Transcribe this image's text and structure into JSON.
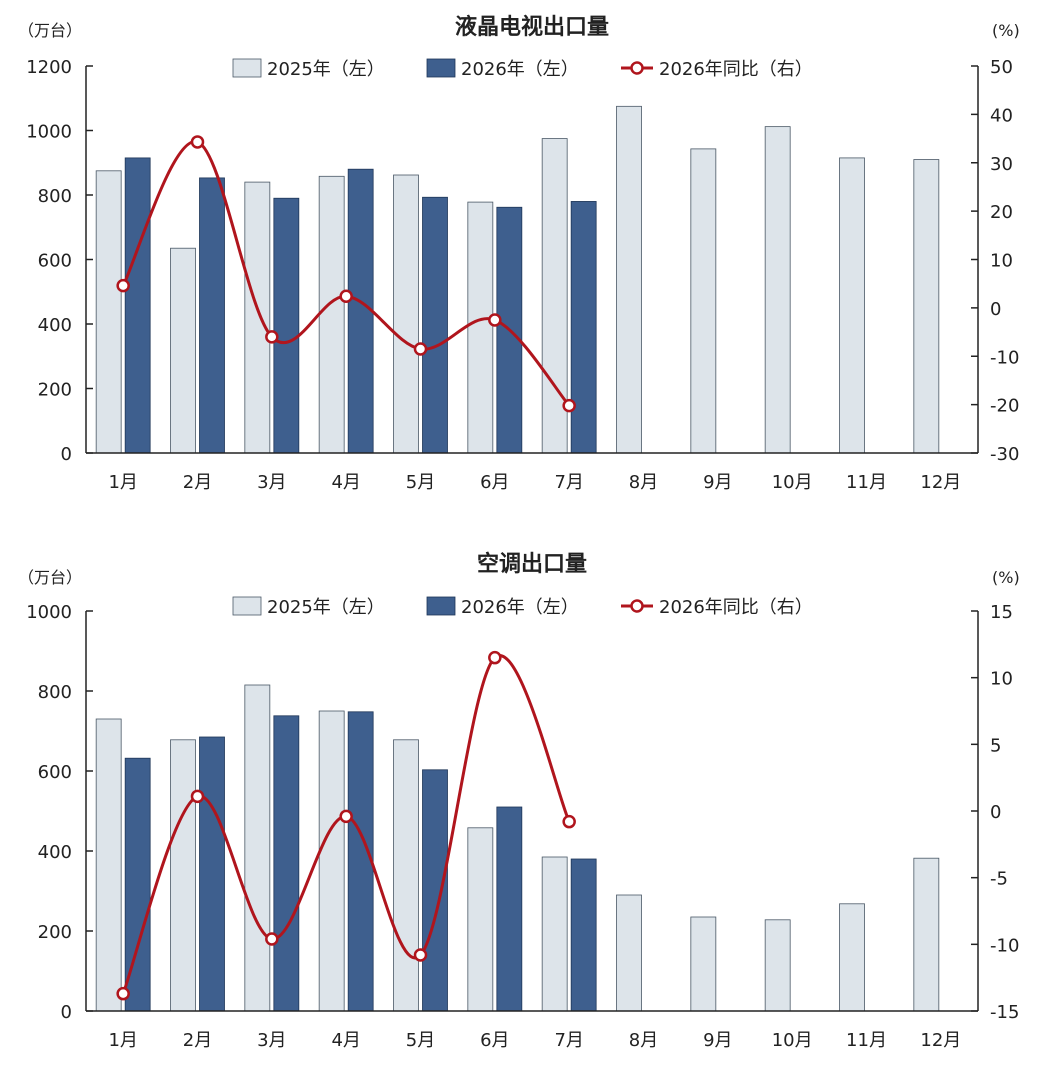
{
  "legend": {
    "series_2025": "2025年（左）",
    "series_2026": "2026年（左）",
    "series_yoy": "2026年同比（右）"
  },
  "colors": {
    "bar_2025": "#dde4ea",
    "bar_2026": "#3e5f8e",
    "yoy_line": "#b0151d"
  },
  "chart_data": [
    {
      "type": "bar",
      "title": "液晶电视出口量",
      "ylabel_left": "（万台）",
      "ylabel_right": "(%)",
      "categories": [
        "1月",
        "2月",
        "3月",
        "4月",
        "5月",
        "6月",
        "7月",
        "8月",
        "9月",
        "10月",
        "11月",
        "12月"
      ],
      "ylim_left": [
        0,
        1200
      ],
      "yticks_left": [
        0,
        200,
        400,
        600,
        800,
        1000,
        1200
      ],
      "ylim_right": [
        -30,
        50
      ],
      "yticks_right": [
        -30,
        -20,
        -10,
        0,
        10,
        20,
        30,
        40,
        50
      ],
      "legend_position": "top",
      "series": [
        {
          "name": "2025年（左）",
          "axis": "left",
          "kind": "bar",
          "values": [
            875,
            635,
            840,
            858,
            862,
            778,
            975,
            1075,
            943,
            1012,
            915,
            910
          ]
        },
        {
          "name": "2026年（左）",
          "axis": "left",
          "kind": "bar",
          "values": [
            915,
            853,
            790,
            880,
            793,
            762,
            780,
            null,
            null,
            null,
            null,
            null
          ]
        },
        {
          "name": "2026年同比（右）",
          "axis": "right",
          "kind": "line",
          "values": [
            4.6,
            34.3,
            -6.0,
            2.4,
            -8.5,
            -2.5,
            -20.2,
            null,
            null,
            null,
            null,
            null
          ]
        }
      ]
    },
    {
      "type": "bar",
      "title": "空调出口量",
      "ylabel_left": "（万台）",
      "ylabel_right": "(%)",
      "categories": [
        "1月",
        "2月",
        "3月",
        "4月",
        "5月",
        "6月",
        "7月",
        "8月",
        "9月",
        "10月",
        "11月",
        "12月"
      ],
      "ylim_left": [
        0,
        1000
      ],
      "yticks_left": [
        0,
        200,
        400,
        600,
        800,
        1000
      ],
      "ylim_right": [
        -15,
        15
      ],
      "yticks_right": [
        -15,
        -10,
        -5,
        0,
        5,
        10,
        15
      ],
      "legend_position": "top",
      "series": [
        {
          "name": "2025年（左）",
          "axis": "left",
          "kind": "bar",
          "values": [
            730,
            678,
            815,
            750,
            678,
            458,
            385,
            290,
            235,
            228,
            268,
            382
          ]
        },
        {
          "name": "2026年（左）",
          "axis": "left",
          "kind": "bar",
          "values": [
            632,
            685,
            738,
            748,
            603,
            510,
            380,
            null,
            null,
            null,
            null,
            null
          ]
        },
        {
          "name": "2026年同比（右）",
          "axis": "right",
          "kind": "line",
          "values": [
            -13.7,
            1.1,
            -9.6,
            -0.4,
            -10.8,
            11.5,
            -0.8,
            null,
            null,
            null,
            null,
            null
          ]
        }
      ]
    }
  ]
}
